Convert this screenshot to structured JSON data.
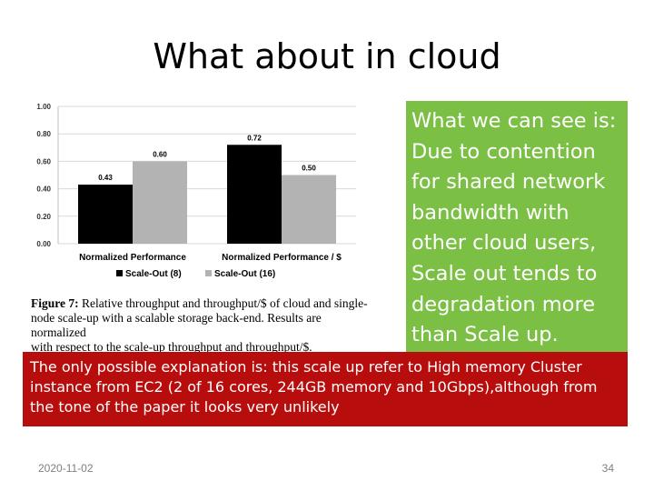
{
  "slide": {
    "title": "What about in cloud",
    "callout": "What we can see is: Due to contention for shared network bandwidth with other cloud users, Scale out tends to degradation more than Scale up.",
    "callout_lines": [
      "What we can see is:",
      "Due to contention",
      "for shared network",
      "bandwidth with",
      "other cloud users,",
      "Scale out tends to",
      "degradation more",
      "than Scale up."
    ],
    "note_lines": [
      "The only possible explanation is: this scale up refer to High memory Cluster",
      "instance from EC2 (2 of 16 cores, 244GB memory and 10Gbps),although from",
      "the tone of the paper it looks very unlikely"
    ],
    "date": "2020-11-02",
    "page_number": "34"
  },
  "figure": {
    "caption_label": "Figure 7:",
    "caption_lines": [
      " Relative throughput and throughput/$ of cloud and single-",
      "node scale-up with a scalable storage back-end. Results are normalized",
      "with respect to the scale-up throughput and throughput/$."
    ]
  },
  "chart_data": {
    "type": "bar",
    "categories": [
      "Normalized Performance",
      "Normalized Performance / $"
    ],
    "series": [
      {
        "name": "Scale-Out (8)",
        "values": [
          0.43,
          0.72
        ],
        "color": "#000000"
      },
      {
        "name": "Scale-Out (16)",
        "values": [
          0.6,
          0.5
        ],
        "color": "#b3b3b3"
      }
    ],
    "value_labels": [
      [
        "0.43",
        "0.72"
      ],
      [
        "0.60",
        "0.50"
      ]
    ],
    "yticks": [
      "1.00",
      "0.80",
      "0.60",
      "0.40",
      "0.20",
      "0.00"
    ],
    "ylim": [
      0,
      1
    ],
    "grid": true,
    "legend_position": "bottom"
  },
  "colors": {
    "callout_bg": "#7bbf45",
    "note_bg": "#b80d0d",
    "footer_text": "#7f7f7f"
  }
}
